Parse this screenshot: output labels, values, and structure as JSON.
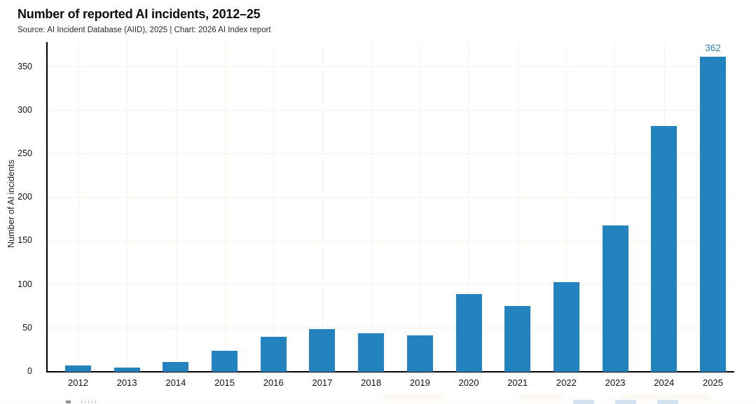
{
  "header": {
    "title": "Number of reported AI incidents, 2012–25",
    "subtitle": "Source: AI Incident Database (AIID), 2025 | Chart: 2026 AI Index report"
  },
  "chart_data": {
    "type": "bar",
    "title": "Number of reported AI incidents, 2012–25",
    "categories": [
      "2012",
      "2013",
      "2014",
      "2015",
      "2016",
      "2017",
      "2018",
      "2019",
      "2020",
      "2021",
      "2022",
      "2023",
      "2024",
      "2025"
    ],
    "values": [
      7,
      5,
      11,
      24,
      40,
      49,
      44,
      42,
      89,
      76,
      103,
      168,
      282,
      362
    ],
    "xlabel": "",
    "ylabel": "Number of AI incidents",
    "ylim": [
      0,
      378
    ],
    "yticks": [
      0,
      50,
      100,
      150,
      200,
      250,
      300,
      350
    ],
    "grid": "faint horizontal gridlines at 50-intervals and faint vertical gridlines at each year",
    "legend": "none",
    "bar_color": "#2383bf",
    "axis_color": "#000000",
    "data_labels": [
      {
        "category": "2025",
        "label": "362",
        "color": "#2e7db5"
      }
    ]
  },
  "bottom_strip": {
    "description": "top edge of cut-off content below the chart",
    "tab_color": "#d2e2ef"
  }
}
